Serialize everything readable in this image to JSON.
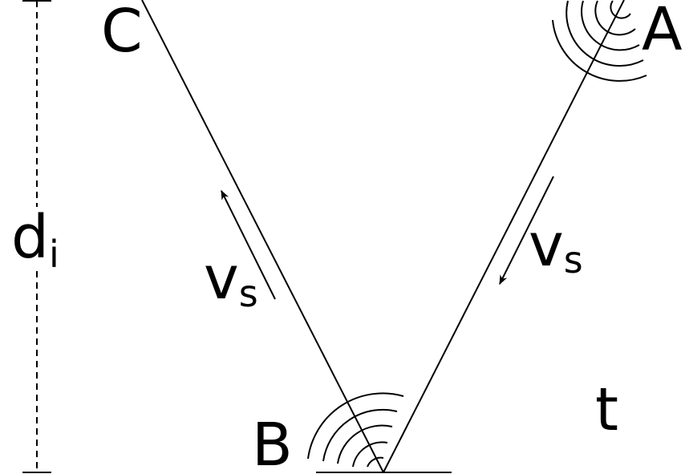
{
  "labels": {
    "point_a": "A",
    "point_b": "B",
    "point_c": "C",
    "time": "t",
    "depth_main": "d",
    "depth_sub": "i",
    "velocity_left_main": "v",
    "velocity_left_sub": "s",
    "velocity_right_main": "v",
    "velocity_right_sub": "s"
  },
  "colors": {
    "stroke": "#000000",
    "background": "#ffffff"
  }
}
